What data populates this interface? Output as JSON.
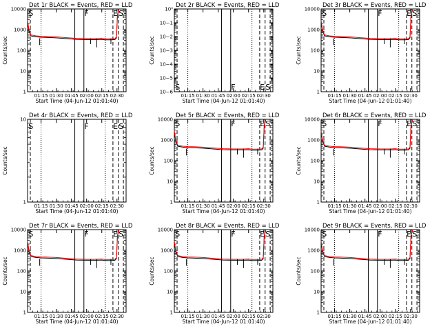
{
  "chart_data": [
    {
      "type": "line",
      "title": "Det 1r BLACK = Events, RED = LLD",
      "ylabel": "Counts/sec",
      "xlabel": "Start Time (04-Jun-12 01:01:40)",
      "yscale": "log",
      "ylim": [
        1,
        10000
      ],
      "yticks": [
        "1",
        "10",
        "100",
        "1000",
        "10000"
      ],
      "xticks": [
        "01:15",
        "01:30",
        "01:45",
        "02:00",
        "02:15",
        "02:30"
      ],
      "markers": [
        "S",
        "F",
        "E",
        "S"
      ],
      "has_data": true,
      "series": [
        {
          "name": "BLACK",
          "color": "#000000",
          "x": [
            "01:01:40",
            "01:03",
            "01:05",
            "01:10",
            "01:15",
            "01:20",
            "01:30",
            "01:40",
            "01:50",
            "02:00",
            "02:10",
            "02:15",
            "02:18",
            "02:20",
            "02:25",
            "02:28",
            "02:29:30",
            "02:30:30",
            "02:32"
          ],
          "y": [
            2500,
            900,
            500,
            450,
            430,
            420,
            400,
            370,
            340,
            330,
            330,
            340,
            320,
            320,
            320,
            330,
            400,
            5000,
            9000
          ]
        },
        {
          "name": "RED",
          "color": "#ff0000",
          "x": [
            "01:01:40",
            "01:03",
            "01:05",
            "01:10",
            "01:15",
            "01:20",
            "01:30",
            "01:40",
            "01:50",
            "02:00",
            "02:10",
            "02:15",
            "02:18",
            "02:20",
            "02:25",
            "02:28",
            "02:29:30",
            "02:30:30",
            "02:32"
          ],
          "y": [
            2800,
            1000,
            560,
            500,
            480,
            470,
            450,
            410,
            380,
            370,
            370,
            380,
            360,
            360,
            360,
            370,
            450,
            5500,
            10000
          ]
        }
      ]
    },
    {
      "type": "line",
      "title": "Det 2r BLACK = Events, RED = LLD",
      "ylabel": "Counts/sec",
      "xlabel": "Start Time (04-Jun-12 01:01:40)",
      "yscale": "log",
      "ylim": [
        1,
        1e-06
      ],
      "yticks": [
        "10−6",
        "10−5",
        "10−4",
        "10−3",
        "10−2",
        "10−1",
        "10⁰"
      ],
      "xticks": [
        "01:15",
        "01:30",
        "01:45",
        "02:00",
        "02:15",
        "02:30"
      ],
      "markers": [
        "S",
        "F",
        "E",
        "S"
      ],
      "has_data": false,
      "series": []
    },
    {
      "type": "line",
      "title": "Det 3r BLACK = Events, RED = LLD",
      "ylabel": "Counts/sec",
      "xlabel": "Start Time (04-Jun-12 01:01:40)",
      "yscale": "log",
      "ylim": [
        1,
        10000
      ],
      "yticks": [
        "1",
        "10",
        "100",
        "1000",
        "10000"
      ],
      "xticks": [
        "01:15",
        "01:30",
        "01:45",
        "02:00",
        "02:15",
        "02:30"
      ],
      "markers": [
        "S",
        "F",
        "E",
        "S"
      ],
      "has_data": true,
      "series": [
        {
          "name": "BLACK",
          "color": "#000000",
          "x": [
            "01:01:40",
            "01:03",
            "01:05",
            "01:10",
            "01:15",
            "01:20",
            "01:30",
            "01:40",
            "01:50",
            "02:00",
            "02:10",
            "02:15",
            "02:18",
            "02:20",
            "02:25",
            "02:28",
            "02:29:30",
            "02:30:30",
            "02:32"
          ],
          "y": [
            2500,
            900,
            500,
            450,
            430,
            420,
            400,
            370,
            340,
            330,
            330,
            340,
            320,
            320,
            320,
            330,
            400,
            5000,
            9000
          ]
        },
        {
          "name": "RED",
          "color": "#ff0000",
          "x": [
            "01:01:40",
            "01:03",
            "01:05",
            "01:10",
            "01:15",
            "01:20",
            "01:30",
            "01:40",
            "01:50",
            "02:00",
            "02:10",
            "02:15",
            "02:18",
            "02:20",
            "02:25",
            "02:28",
            "02:29:30",
            "02:30:30",
            "02:32"
          ],
          "y": [
            2800,
            1000,
            560,
            500,
            480,
            470,
            450,
            410,
            380,
            370,
            370,
            380,
            360,
            360,
            360,
            370,
            450,
            5500,
            10000
          ]
        }
      ]
    },
    {
      "type": "line",
      "title": "Det 4r BLACK = Events, RED = LLD",
      "ylabel": "Counts/sec",
      "xlabel": "Start Time (04-Jun-12 01:01:40)",
      "yscale": "log",
      "ylim": [
        1,
        10
      ],
      "yticks": [
        "1",
        "10"
      ],
      "xticks": [
        "01:15",
        "01:30",
        "01:45",
        "02:00",
        "02:15",
        "02:30"
      ],
      "markers": [
        "S",
        "F",
        "E",
        "S"
      ],
      "has_data": false,
      "series": []
    },
    {
      "type": "line",
      "title": "Det 5r BLACK = Events, RED = LLD",
      "ylabel": "Counts/sec",
      "xlabel": "Start Time (04-Jun-12 01:01:40)",
      "yscale": "log",
      "ylim": [
        1,
        10000
      ],
      "yticks": [
        "1",
        "10",
        "100",
        "1000",
        "10000"
      ],
      "xticks": [
        "01:15",
        "01:30",
        "01:45",
        "02:00",
        "02:15",
        "02:30"
      ],
      "markers": [
        "S",
        "F",
        "E",
        "S"
      ],
      "has_data": true,
      "series": [
        {
          "name": "BLACK",
          "color": "#000000",
          "x": [
            "01:01:40",
            "01:03",
            "01:05",
            "01:10",
            "01:15",
            "01:20",
            "01:30",
            "01:40",
            "01:50",
            "02:00",
            "02:10",
            "02:15",
            "02:18",
            "02:20",
            "02:25",
            "02:28",
            "02:29:30",
            "02:30:30",
            "02:32"
          ],
          "y": [
            2500,
            900,
            500,
            450,
            430,
            420,
            400,
            370,
            340,
            330,
            330,
            340,
            320,
            320,
            320,
            330,
            400,
            5000,
            9000
          ]
        },
        {
          "name": "RED",
          "color": "#ff0000",
          "x": [
            "01:01:40",
            "01:03",
            "01:05",
            "01:10",
            "01:15",
            "01:20",
            "01:30",
            "01:40",
            "01:50",
            "02:00",
            "02:10",
            "02:15",
            "02:18",
            "02:20",
            "02:25",
            "02:28",
            "02:29:30",
            "02:30:30",
            "02:32"
          ],
          "y": [
            2800,
            1000,
            560,
            500,
            480,
            470,
            450,
            410,
            380,
            370,
            370,
            380,
            360,
            360,
            360,
            370,
            450,
            5500,
            10000
          ]
        }
      ]
    },
    {
      "type": "line",
      "title": "Det 6r BLACK = Events, RED = LLD",
      "ylabel": "Counts/sec",
      "xlabel": "Start Time (04-Jun-12 01:01:40)",
      "yscale": "log",
      "ylim": [
        1,
        10000
      ],
      "yticks": [
        "1",
        "10",
        "100",
        "1000",
        "10000"
      ],
      "xticks": [
        "01:15",
        "01:30",
        "01:45",
        "02:00",
        "02:15",
        "02:30"
      ],
      "markers": [
        "S",
        "F",
        "E",
        "S"
      ],
      "has_data": true,
      "series": [
        {
          "name": "BLACK",
          "color": "#000000",
          "x": [
            "01:01:40",
            "01:03",
            "01:05",
            "01:10",
            "01:15",
            "01:20",
            "01:30",
            "01:40",
            "01:50",
            "02:00",
            "02:10",
            "02:15",
            "02:18",
            "02:20",
            "02:25",
            "02:28",
            "02:29:30",
            "02:30:30",
            "02:32"
          ],
          "y": [
            2500,
            900,
            500,
            450,
            430,
            420,
            400,
            370,
            340,
            330,
            330,
            340,
            320,
            320,
            320,
            330,
            400,
            5000,
            9000
          ]
        },
        {
          "name": "RED",
          "color": "#ff0000",
          "x": [
            "01:01:40",
            "01:03",
            "01:05",
            "01:10",
            "01:15",
            "01:20",
            "01:30",
            "01:40",
            "01:50",
            "02:00",
            "02:10",
            "02:15",
            "02:18",
            "02:20",
            "02:25",
            "02:28",
            "02:29:30",
            "02:30:30",
            "02:32"
          ],
          "y": [
            2800,
            1000,
            560,
            500,
            480,
            470,
            450,
            410,
            380,
            370,
            370,
            380,
            360,
            360,
            360,
            370,
            450,
            5500,
            10000
          ]
        }
      ]
    },
    {
      "type": "line",
      "title": "Det 7r BLACK = Events, RED = LLD",
      "ylabel": "Counts/sec",
      "xlabel": "Start Time (04-Jun-12 01:01:40)",
      "yscale": "log",
      "ylim": [
        1,
        10000
      ],
      "yticks": [
        "1",
        "10",
        "100",
        "1000",
        "10000"
      ],
      "xticks": [
        "01:15",
        "01:30",
        "01:45",
        "02:00",
        "02:15",
        "02:30"
      ],
      "markers": [
        "S",
        "F",
        "E",
        "S"
      ],
      "has_data": true,
      "series": [
        {
          "name": "BLACK",
          "color": "#000000",
          "x": [
            "01:01:40",
            "01:03",
            "01:05",
            "01:10",
            "01:15",
            "01:20",
            "01:30",
            "01:40",
            "01:50",
            "02:00",
            "02:10",
            "02:15",
            "02:18",
            "02:20",
            "02:25",
            "02:28",
            "02:29:30",
            "02:30:30",
            "02:32"
          ],
          "y": [
            2500,
            900,
            500,
            450,
            430,
            420,
            400,
            370,
            340,
            330,
            330,
            340,
            320,
            320,
            320,
            330,
            400,
            5000,
            9000
          ]
        },
        {
          "name": "RED",
          "color": "#ff0000",
          "x": [
            "01:01:40",
            "01:03",
            "01:05",
            "01:10",
            "01:15",
            "01:20",
            "01:30",
            "01:40",
            "01:50",
            "02:00",
            "02:10",
            "02:15",
            "02:18",
            "02:20",
            "02:25",
            "02:28",
            "02:29:30",
            "02:30:30",
            "02:32"
          ],
          "y": [
            2800,
            1000,
            560,
            500,
            480,
            470,
            450,
            410,
            380,
            370,
            370,
            380,
            360,
            360,
            360,
            370,
            450,
            5500,
            10000
          ]
        }
      ]
    },
    {
      "type": "line",
      "title": "Det 8r BLACK = Events, RED = LLD",
      "ylabel": "Counts/sec",
      "xlabel": "Start Time (04-Jun-12 01:01:40)",
      "yscale": "log",
      "ylim": [
        1,
        10000
      ],
      "yticks": [
        "1",
        "10",
        "100",
        "1000",
        "10000"
      ],
      "xticks": [
        "01:15",
        "01:30",
        "01:45",
        "02:00",
        "02:15",
        "02:30"
      ],
      "markers": [
        "S",
        "F",
        "E",
        "S"
      ],
      "has_data": true,
      "series": [
        {
          "name": "BLACK",
          "color": "#000000",
          "x": [
            "01:01:40",
            "01:03",
            "01:05",
            "01:10",
            "01:15",
            "01:20",
            "01:30",
            "01:40",
            "01:50",
            "02:00",
            "02:10",
            "02:15",
            "02:18",
            "02:20",
            "02:25",
            "02:28",
            "02:29:30",
            "02:30:30",
            "02:32"
          ],
          "y": [
            2500,
            900,
            500,
            450,
            430,
            420,
            400,
            370,
            340,
            330,
            330,
            340,
            320,
            320,
            320,
            330,
            400,
            5000,
            9000
          ]
        },
        {
          "name": "RED",
          "color": "#ff0000",
          "x": [
            "01:01:40",
            "01:03",
            "01:05",
            "01:10",
            "01:15",
            "01:20",
            "01:30",
            "01:40",
            "01:50",
            "02:00",
            "02:10",
            "02:15",
            "02:18",
            "02:20",
            "02:25",
            "02:28",
            "02:29:30",
            "02:30:30",
            "02:32"
          ],
          "y": [
            2800,
            1000,
            560,
            500,
            480,
            470,
            450,
            410,
            380,
            370,
            370,
            380,
            360,
            360,
            360,
            370,
            450,
            5500,
            10000
          ]
        }
      ]
    },
    {
      "type": "line",
      "title": "Det 9r BLACK = Events, RED = LLD",
      "ylabel": "Counts/sec",
      "xlabel": "Start Time (04-Jun-12 01:01:40)",
      "yscale": "log",
      "ylim": [
        1,
        10000
      ],
      "yticks": [
        "1",
        "10",
        "100",
        "1000",
        "10000"
      ],
      "xticks": [
        "01:15",
        "01:30",
        "01:45",
        "02:00",
        "02:15",
        "02:30"
      ],
      "markers": [
        "S",
        "F",
        "E",
        "S"
      ],
      "has_data": true,
      "series": [
        {
          "name": "BLACK",
          "color": "#000000",
          "x": [
            "01:01:40",
            "01:03",
            "01:05",
            "01:10",
            "01:15",
            "01:20",
            "01:30",
            "01:40",
            "01:50",
            "02:00",
            "02:10",
            "02:15",
            "02:18",
            "02:20",
            "02:25",
            "02:28",
            "02:29:30",
            "02:30:30",
            "02:32"
          ],
          "y": [
            2500,
            900,
            500,
            450,
            430,
            420,
            400,
            370,
            340,
            330,
            330,
            340,
            320,
            320,
            320,
            330,
            400,
            5000,
            9000
          ]
        },
        {
          "name": "RED",
          "color": "#ff0000",
          "x": [
            "01:01:40",
            "01:03",
            "01:05",
            "01:10",
            "01:15",
            "01:20",
            "01:30",
            "01:40",
            "01:50",
            "02:00",
            "02:10",
            "02:15",
            "02:18",
            "02:20",
            "02:25",
            "02:28",
            "02:29:30",
            "02:30:30",
            "02:32"
          ],
          "y": [
            2800,
            1000,
            560,
            500,
            480,
            470,
            450,
            410,
            380,
            370,
            370,
            380,
            360,
            360,
            360,
            370,
            450,
            5500,
            10000
          ]
        }
      ]
    }
  ]
}
